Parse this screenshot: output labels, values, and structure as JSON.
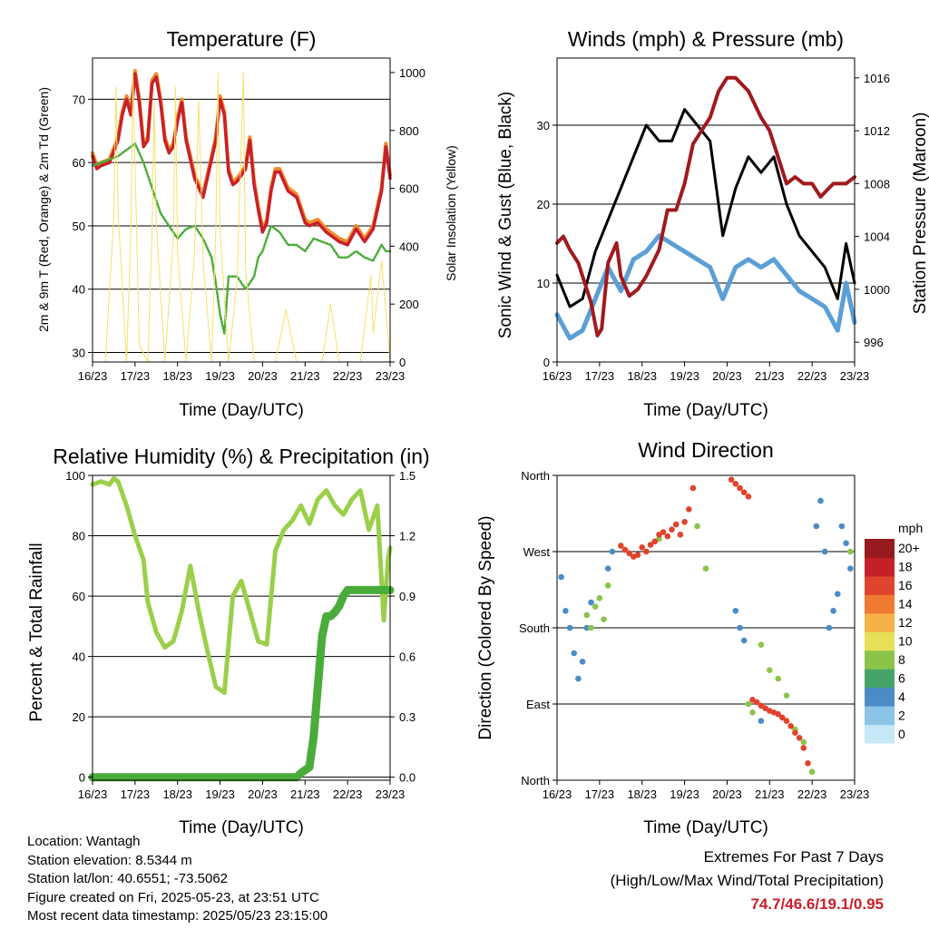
{
  "xticks": [
    "16/23",
    "17/23",
    "18/23",
    "19/23",
    "20/23",
    "21/23",
    "22/23",
    "23/23"
  ],
  "panels": {
    "temperature": {
      "title": "Temperature (F)",
      "xlabel": "Time (Day/UTC)",
      "ylabel_left": "2m & 9m T (Red, Orange) & 2m Td (Green)",
      "ylabel_right": "Solar Insolation (Yellow)",
      "yticks_left": [
        "30",
        "40",
        "50",
        "60",
        "70"
      ],
      "yticks_right": [
        "0",
        "200",
        "400",
        "600",
        "800",
        "1000"
      ]
    },
    "winds": {
      "title": "Winds (mph) & Pressure (mb)",
      "xlabel": "Time (Day/UTC)",
      "ylabel_left": "Sonic Wind & Gust (Blue, Black)",
      "ylabel_right": "Station Pressure (Maroon)",
      "yticks_left": [
        "0",
        "10",
        "20",
        "30"
      ],
      "yticks_right": [
        "996",
        "1000",
        "1004",
        "1008",
        "1012",
        "1016"
      ]
    },
    "humidity": {
      "title": "Relative Humidity (%) & Precipitation (in)",
      "xlabel": "Time (Day/UTC)",
      "ylabel_left": "Percent & Total Rainfall",
      "yticks_left": [
        "0",
        "20",
        "40",
        "60",
        "80",
        "100"
      ],
      "yticks_right": [
        "0.0",
        "0.3",
        "0.6",
        "0.9",
        "1.2",
        "1.5"
      ]
    },
    "direction": {
      "title": "Wind Direction",
      "xlabel": "Time (Day/UTC)",
      "ylabel_left": "Direction (Colored By Speed)",
      "yticks_left": [
        "North",
        "East",
        "South",
        "West",
        "North"
      ],
      "legend_title": "mph",
      "legend_labels": [
        "0",
        "2",
        "4",
        "6",
        "8",
        "10",
        "12",
        "14",
        "16",
        "18",
        "20+"
      ],
      "legend_colors": [
        "#c6e8f6",
        "#8cc4e8",
        "#4a8cc6",
        "#45a46a",
        "#8cc44a",
        "#e6e057",
        "#f7b247",
        "#f07a32",
        "#e0442e",
        "#c42028",
        "#961a1e"
      ]
    }
  },
  "info": {
    "location": "Location: Wantagh",
    "elevation": "Station elevation: 8.5344 m",
    "latlon": "Station lat/lon: 40.6551; -73.5062",
    "created": "Figure created on Fri, 2025-05-23, at 23:51 UTC",
    "recent": "Most recent data timestamp: 2025/05/23 23:15:00"
  },
  "extremes": {
    "heading": "Extremes For Past 7 Days",
    "subheading": "(High/Low/Max Wind/Total Precipitation)",
    "values": "74.7/46.6/19.1/0.95"
  },
  "chart_data": [
    {
      "type": "line",
      "x_unit": "days since 16/23",
      "xlim": [
        0,
        7
      ],
      "ylim": [
        28.5,
        76.5
      ],
      "y2lim": [
        0,
        1050
      ],
      "series": [
        {
          "axis": "left",
          "color": "#f08c2a",
          "x": [
            0,
            0.1,
            0.2,
            0.4,
            0.6,
            0.7,
            0.8,
            0.9,
            1.0,
            1.1,
            1.2,
            1.3,
            1.4,
            1.5,
            1.6,
            1.7,
            1.8,
            1.9,
            2.0,
            2.1,
            2.2,
            2.4,
            2.6,
            2.7,
            2.8,
            2.9,
            3.0,
            3.1,
            3.2,
            3.3,
            3.4,
            3.6,
            3.7,
            3.8,
            3.9,
            4.0,
            4.1,
            4.2,
            4.3,
            4.4,
            4.6,
            4.8,
            5.0,
            5.1,
            5.3,
            5.5,
            5.8,
            6.0,
            6.2,
            6.4,
            6.6,
            6.8,
            6.9,
            7.0
          ],
          "y": [
            61.5,
            59.5,
            60,
            60.5,
            64,
            68,
            70.5,
            68,
            74.5,
            70,
            63,
            64,
            73,
            74,
            70,
            64,
            62,
            63,
            67,
            70,
            64,
            58,
            55,
            58,
            61,
            64,
            70.5,
            68,
            59,
            57,
            57.5,
            59.5,
            64,
            57,
            53,
            49.5,
            51,
            56,
            59,
            59,
            56,
            55,
            51,
            50.5,
            51,
            49.5,
            48,
            47.5,
            50,
            48,
            50,
            56,
            63,
            58
          ]
        },
        {
          "axis": "left",
          "color": "#c8202a",
          "x": [
            0,
            0.1,
            0.2,
            0.4,
            0.6,
            0.7,
            0.8,
            0.9,
            1.0,
            1.1,
            1.2,
            1.3,
            1.4,
            1.5,
            1.6,
            1.7,
            1.8,
            1.9,
            2.0,
            2.1,
            2.2,
            2.4,
            2.6,
            2.7,
            2.8,
            2.9,
            3.0,
            3.1,
            3.2,
            3.3,
            3.4,
            3.6,
            3.7,
            3.8,
            3.9,
            4.0,
            4.1,
            4.2,
            4.3,
            4.4,
            4.6,
            4.8,
            5.0,
            5.1,
            5.3,
            5.5,
            5.8,
            6.0,
            6.2,
            6.4,
            6.6,
            6.8,
            6.9,
            7.0
          ],
          "y": [
            61,
            59,
            59.5,
            60,
            63.5,
            67.5,
            70,
            67.5,
            74,
            69.5,
            62.5,
            63.5,
            72.5,
            73.5,
            69.5,
            63.5,
            61.5,
            62.5,
            66.5,
            69.5,
            63.5,
            57.5,
            54.5,
            57.5,
            60.5,
            63.5,
            70,
            67.5,
            58.5,
            56.5,
            57,
            59,
            63.5,
            56.5,
            52.5,
            49,
            50.5,
            55.5,
            58.5,
            58.5,
            55.5,
            54.5,
            50.5,
            50,
            50.5,
            49,
            47.5,
            47,
            49.5,
            47.5,
            49.5,
            55.5,
            62.5,
            57.5
          ]
        },
        {
          "axis": "left",
          "color": "#4aac3a",
          "x": [
            0,
            0.2,
            0.4,
            0.6,
            0.8,
            1.0,
            1.2,
            1.4,
            1.6,
            1.8,
            2.0,
            2.2,
            2.4,
            2.6,
            2.8,
            2.9,
            3.0,
            3.1,
            3.2,
            3.4,
            3.6,
            3.8,
            3.9,
            4.0,
            4.2,
            4.4,
            4.6,
            4.8,
            5.0,
            5.2,
            5.4,
            5.6,
            5.8,
            6.0,
            6.2,
            6.4,
            6.6,
            6.8,
            6.9,
            7.0
          ],
          "y": [
            59.5,
            60,
            60.5,
            61,
            62,
            63,
            60,
            56,
            52,
            50,
            48,
            49.5,
            50,
            48,
            45,
            41,
            36,
            33,
            42,
            42,
            40,
            42,
            45,
            46,
            50,
            49,
            47,
            47,
            46,
            48,
            47.5,
            47,
            45,
            45,
            46,
            45,
            44.5,
            47,
            46,
            46
          ]
        },
        {
          "axis": "right",
          "color": "#f5e06a",
          "x": [
            0.3,
            0.5,
            0.55,
            0.6,
            0.8,
            0.9,
            0.95,
            1.1,
            1.3,
            1.4,
            1.45,
            1.5,
            1.7,
            1.9,
            1.95,
            2.0,
            2.2,
            2.4,
            2.5,
            2.6,
            2.8,
            2.9,
            2.95,
            3.0,
            3.2,
            3.4,
            3.55,
            3.6,
            3.8,
            4.3,
            4.55,
            4.8,
            5.4,
            5.6,
            5.8,
            6.3,
            6.55,
            6.6,
            6.8,
            7.0
          ],
          "y": [
            0,
            500,
            950,
            520,
            0,
            450,
            1000,
            60,
            0,
            450,
            900,
            480,
            0,
            420,
            950,
            380,
            0,
            380,
            900,
            350,
            0,
            450,
            1000,
            450,
            0,
            280,
            1000,
            320,
            0,
            0,
            180,
            0,
            0,
            200,
            0,
            0,
            300,
            100,
            350,
            0
          ]
        }
      ]
    },
    {
      "type": "line",
      "x_unit": "days since 16/23",
      "xlim": [
        0,
        7
      ],
      "ylim": [
        0,
        38.5
      ],
      "y2lim": [
        994.5,
        1017.5
      ],
      "series": [
        {
          "axis": "left",
          "color": "#5a9fd6",
          "x": [
            0,
            0.3,
            0.6,
            0.9,
            1.2,
            1.5,
            1.8,
            2.1,
            2.4,
            2.7,
            3.0,
            3.3,
            3.6,
            3.9,
            4.2,
            4.5,
            4.8,
            5.1,
            5.4,
            5.7,
            6.0,
            6.3,
            6.6,
            6.8,
            7.0
          ],
          "y": [
            6,
            3,
            4,
            8,
            12,
            9,
            13,
            14,
            16,
            15,
            14,
            13,
            12,
            8,
            12,
            13,
            12,
            13,
            11,
            9,
            8,
            7,
            4,
            10,
            5
          ]
        },
        {
          "axis": "left",
          "color": "#000000",
          "x": [
            0,
            0.3,
            0.6,
            0.9,
            1.2,
            1.5,
            1.8,
            2.1,
            2.4,
            2.7,
            3.0,
            3.3,
            3.6,
            3.9,
            4.2,
            4.5,
            4.8,
            5.1,
            5.4,
            5.7,
            6.0,
            6.3,
            6.6,
            6.8,
            7.0
          ],
          "y": [
            11,
            7,
            8,
            14,
            18,
            22,
            26,
            30,
            28,
            28,
            32,
            30,
            28,
            16,
            22,
            26,
            24,
            26,
            20,
            16,
            14,
            12,
            8,
            15,
            10
          ]
        },
        {
          "axis": "right",
          "color": "#a01a1e",
          "x": [
            0,
            0.15,
            0.3,
            0.5,
            0.8,
            0.95,
            1.05,
            1.2,
            1.4,
            1.5,
            1.7,
            1.9,
            2.1,
            2.4,
            2.6,
            2.8,
            3.0,
            3.2,
            3.4,
            3.6,
            3.8,
            4.0,
            4.2,
            4.5,
            4.8,
            5.0,
            5.2,
            5.4,
            5.6,
            5.8,
            6.0,
            6.2,
            6.5,
            6.8,
            7.0
          ],
          "y": [
            1003.5,
            1004,
            1003,
            1002,
            999,
            996.5,
            997,
            1002,
            1003.5,
            1001,
            999.5,
            1000,
            1001,
            1003,
            1006,
            1006,
            1008,
            1011,
            1012,
            1013,
            1015,
            1016,
            1016,
            1015,
            1013,
            1012,
            1010,
            1008,
            1008.5,
            1008,
            1008,
            1007,
            1008,
            1008,
            1008.5
          ]
        }
      ]
    },
    {
      "type": "line",
      "x_unit": "days since 16/23",
      "xlim": [
        0,
        7
      ],
      "ylim": [
        -1,
        100
      ],
      "y2lim": [
        -0.015,
        1.5
      ],
      "series": [
        {
          "axis": "left",
          "color": "#9bcf4a",
          "x": [
            0,
            0.2,
            0.4,
            0.5,
            0.6,
            0.8,
            1.0,
            1.2,
            1.3,
            1.5,
            1.7,
            1.9,
            2.1,
            2.3,
            2.5,
            2.7,
            2.9,
            3.1,
            3.3,
            3.5,
            3.7,
            3.9,
            4.1,
            4.3,
            4.5,
            4.7,
            4.9,
            5.1,
            5.3,
            5.5,
            5.7,
            5.9,
            6.1,
            6.3,
            6.5,
            6.7,
            6.85,
            6.95,
            7.0
          ],
          "y": [
            97,
            98,
            97,
            99,
            98,
            90,
            80,
            72,
            58,
            48,
            43,
            45,
            55,
            70,
            55,
            42,
            30,
            28,
            60,
            65,
            55,
            45,
            44,
            75,
            82,
            85,
            90,
            84,
            92,
            95,
            90,
            87,
            92,
            95,
            82,
            90,
            52,
            72,
            76
          ]
        },
        {
          "axis": "right",
          "color": "#4aac3a",
          "x": [
            0,
            4.8,
            4.9,
            5.1,
            5.2,
            5.3,
            5.4,
            5.5,
            5.6,
            5.7,
            5.8,
            5.9,
            6.0,
            6.2,
            6.5,
            7.0
          ],
          "y": [
            0,
            0,
            0.02,
            0.05,
            0.2,
            0.45,
            0.7,
            0.8,
            0.8,
            0.82,
            0.85,
            0.9,
            0.93,
            0.93,
            0.93,
            0.93
          ]
        }
      ]
    },
    {
      "type": "scatter",
      "x_unit": "days since 16/23",
      "xlim": [
        0,
        7
      ],
      "ylim": [
        0,
        360
      ],
      "ytick_labels": [
        "North",
        "East",
        "South",
        "West",
        "North"
      ],
      "color_label": "mph",
      "series": [
        {
          "name": "0-4",
          "color": "#4a8cc6",
          "x": [
            0.1,
            0.2,
            0.3,
            0.4,
            0.5,
            0.6,
            0.7,
            0.8,
            1.2,
            1.3,
            4.2,
            4.3,
            4.4,
            4.8,
            6.1,
            6.2,
            6.3,
            6.4,
            6.5,
            6.6,
            6.7,
            6.8,
            6.9
          ],
          "y": [
            240,
            200,
            180,
            150,
            120,
            140,
            180,
            210,
            250,
            270,
            200,
            180,
            165,
            70,
            300,
            330,
            270,
            180,
            200,
            220,
            300,
            280,
            250
          ]
        },
        {
          "name": "6-10",
          "color": "#8cc44a",
          "x": [
            0.7,
            0.8,
            0.9,
            1.0,
            1.1,
            1.2,
            2.4,
            3.3,
            3.5,
            4.5,
            4.6,
            4.8,
            5.0,
            5.2,
            5.4,
            5.6,
            5.8,
            6.0,
            6.9
          ],
          "y": [
            195,
            180,
            205,
            215,
            190,
            230,
            285,
            300,
            250,
            90,
            80,
            160,
            130,
            120,
            100,
            60,
            45,
            10,
            270
          ]
        },
        {
          "name": "12-20+",
          "color": "#e0442e",
          "x": [
            1.5,
            1.6,
            1.7,
            1.8,
            1.9,
            2.0,
            2.1,
            2.2,
            2.3,
            2.4,
            2.5,
            2.6,
            2.7,
            2.8,
            2.9,
            3.0,
            3.1,
            3.2,
            4.1,
            4.2,
            4.3,
            4.4,
            4.5,
            4.6,
            4.7,
            4.8,
            4.9,
            5.0,
            5.1,
            5.2,
            5.3,
            5.4,
            5.5,
            5.6,
            5.7,
            5.8,
            5.9
          ],
          "y": [
            277,
            272,
            268,
            264,
            266,
            275,
            270,
            278,
            282,
            290,
            293,
            288,
            296,
            302,
            290,
            305,
            320,
            345,
            355,
            350,
            345,
            340,
            335,
            95,
            92,
            88,
            85,
            82,
            80,
            78,
            74,
            70,
            64,
            56,
            50,
            38,
            20
          ]
        }
      ]
    }
  ]
}
